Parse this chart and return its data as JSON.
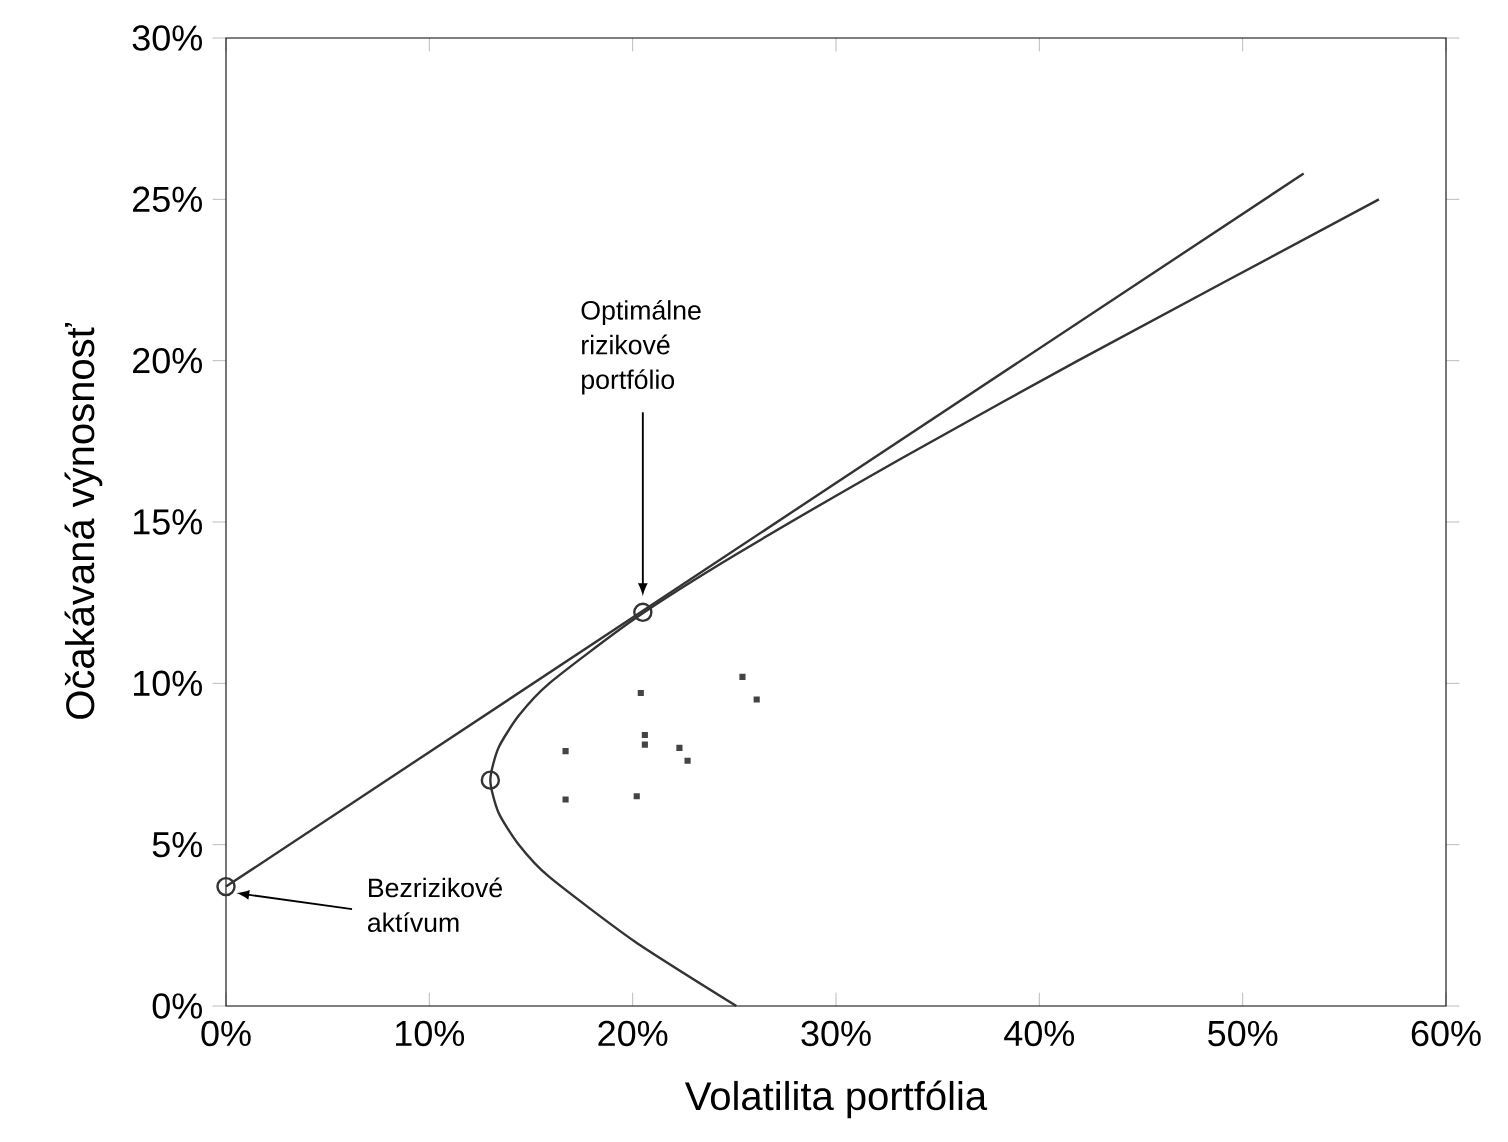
{
  "chart_data": {
    "type": "line",
    "xlabel": "Volatilita portfólia",
    "ylabel": "Očakávaná výnosnosť",
    "xlim": [
      0,
      60
    ],
    "ylim": [
      0,
      30
    ],
    "xticks": [
      {
        "value": 0,
        "label": "0%"
      },
      {
        "value": 10,
        "label": "10%"
      },
      {
        "value": 20,
        "label": "20%"
      },
      {
        "value": 30,
        "label": "30%"
      },
      {
        "value": 40,
        "label": "40%"
      },
      {
        "value": 50,
        "label": "50%"
      },
      {
        "value": 60,
        "label": "60%"
      }
    ],
    "yticks": [
      {
        "value": 0,
        "label": "0%"
      },
      {
        "value": 5,
        "label": "5%"
      },
      {
        "value": 10,
        "label": "10%"
      },
      {
        "value": 15,
        "label": "15%"
      },
      {
        "value": 20,
        "label": "20%"
      },
      {
        "value": 25,
        "label": "25%"
      },
      {
        "value": 30,
        "label": "30%"
      }
    ],
    "grid": false,
    "series": [
      {
        "color": "#333333",
        "marker": "none",
        "x": [
          25.1,
          20.1,
          15.9,
          14.4,
          13.4,
          13.0,
          13.4,
          14.4,
          15.9,
          20.1,
          25.1,
          33.3,
          41.9,
          56.7
        ],
        "values": [
          0,
          2,
          4,
          5,
          6,
          7,
          8,
          9,
          10,
          12,
          14,
          17,
          20,
          25
        ]
      },
      {
        "color": "#333333",
        "marker": "none",
        "x": [
          0,
          53
        ],
        "values": [
          3.7,
          25.8
        ]
      },
      {
        "type": "scatter",
        "color": "#333333",
        "marker": "circle",
        "x": [
          0,
          13,
          20.5
        ],
        "values": [
          3.7,
          7.0,
          12.2
        ]
      },
      {
        "type": "scatter",
        "color": "#444444",
        "marker": "square",
        "x": [
          20.4,
          25.4,
          26.1,
          16.7,
          20.6,
          20.6,
          22.3,
          22.7,
          16.7,
          20.2
        ],
        "values": [
          9.7,
          10.2,
          9.5,
          7.9,
          8.4,
          8.1,
          8.0,
          7.6,
          6.4,
          6.5
        ]
      }
    ],
    "annotations": [
      {
        "text": "Optimálne rizikové portfólio",
        "x": 20.5,
        "y": 12.7
      },
      {
        "text": "Bezrizikové aktívum",
        "x": 0.5,
        "y": 3.5
      }
    ]
  }
}
